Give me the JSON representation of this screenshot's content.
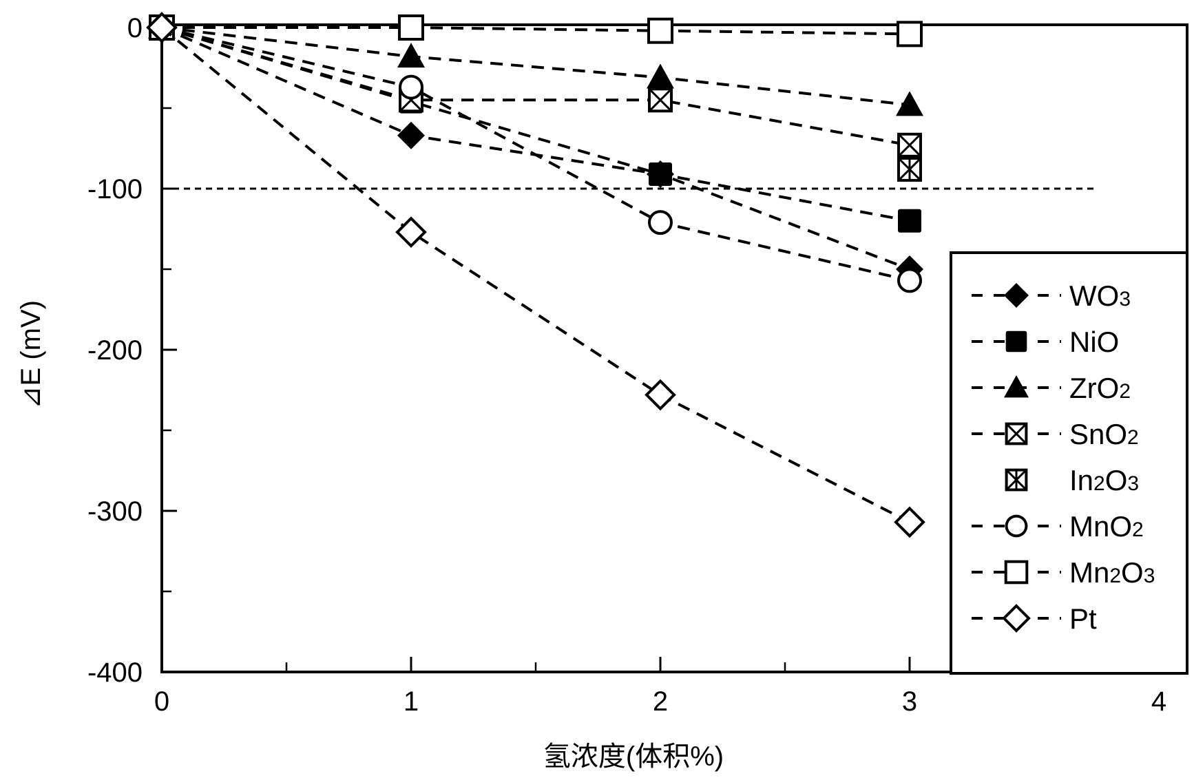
{
  "chart_data": {
    "type": "line",
    "title": "",
    "xlabel": "氢浓度(体积%)",
    "ylabel": "⊿E (mV)",
    "xlim": [
      0,
      4
    ],
    "ylim": [
      -400,
      0
    ],
    "x_ticks": [
      0,
      1,
      2,
      3,
      4
    ],
    "x_tick_labels": [
      "0",
      "1",
      "2",
      "3",
      "4"
    ],
    "x_minor_ticks": [
      0.5,
      1.5,
      2.5
    ],
    "y_ticks": [
      0,
      -100,
      -200,
      -300,
      -400
    ],
    "y_tick_labels": [
      "0",
      "-100",
      "-200",
      "-300",
      "-400"
    ],
    "y_minor_ticks": [
      -50,
      -150,
      -250,
      -350
    ],
    "grid": false,
    "reference_line": {
      "y": -100,
      "style": "dotted",
      "x_end": 3.75
    },
    "legend_position": "lower right (inside)",
    "x": [
      0,
      1,
      2,
      3
    ],
    "series": [
      {
        "name": "WO3",
        "label_main": "WO",
        "label_sub": "3",
        "marker": "filled-diamond",
        "values": [
          0,
          -67,
          -91,
          -150
        ]
      },
      {
        "name": "NiO",
        "label_main": "NiO",
        "label_sub": "",
        "marker": "filled-square",
        "values": [
          0,
          -46,
          -91,
          -120
        ]
      },
      {
        "name": "ZrO2",
        "label_main": "ZrO",
        "label_sub": "2",
        "marker": "filled-triangle",
        "values": [
          0,
          -18,
          -31,
          -48
        ]
      },
      {
        "name": "SnO2",
        "label_main": "SnO",
        "label_sub": "2",
        "marker": "crossed-square",
        "values": [
          0,
          -45,
          -45,
          -73
        ]
      },
      {
        "name": "In2O3",
        "label_parts": [
          "In",
          "2",
          "O",
          "3"
        ],
        "marker": "star-crossed-square",
        "values": [
          null,
          null,
          null,
          -88
        ]
      },
      {
        "name": "MnO2",
        "label_main": "MnO",
        "label_sub": "2",
        "marker": "open-circle",
        "values": [
          0,
          -37,
          -121,
          -157
        ]
      },
      {
        "name": "Mn2O3",
        "label_parts": [
          "Mn",
          "2",
          "O",
          "3"
        ],
        "marker": "open-square",
        "values": [
          0,
          0,
          -2,
          -4
        ]
      },
      {
        "name": "Pt",
        "label_main": "Pt",
        "label_sub": "",
        "marker": "open-diamond",
        "values": [
          0,
          -127,
          -228,
          -307
        ]
      }
    ]
  }
}
